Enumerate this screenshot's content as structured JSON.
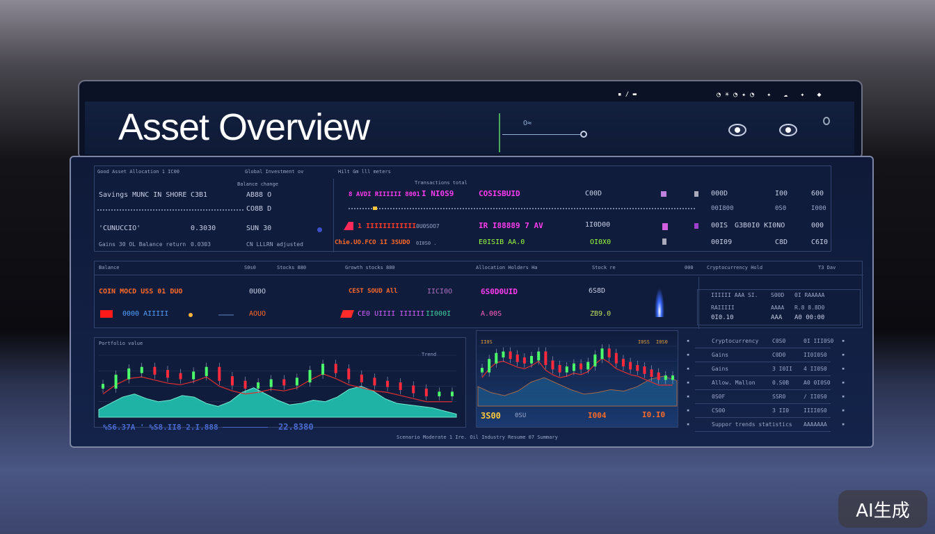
{
  "header": {
    "title": "Asset Overview",
    "toggle_label": "O≈",
    "status_icons": [
      "wifi-icon",
      "signal-icon",
      "battery-icon",
      "settings-icon",
      "user-icon"
    ]
  },
  "top_section": {
    "header_labels": [
      "Good Asset Allocation 1 IC00",
      "Global Investment ov",
      "Hilt Gm lll meters"
    ],
    "sub_label": "Balance change",
    "left_rows": [
      {
        "name": "Savings MUNC IN SHORE",
        "value": "C3B1",
        "amount": "AB88 O"
      },
      {
        "name": "",
        "value": "",
        "amount": "CO8B D"
      },
      {
        "name": "'CUNUCCIO'",
        "value": "0.3030",
        "amount": "SUN 30"
      },
      {
        "name": "Gains 30 OL Balance return",
        "value": "0.0303",
        "amount": "CN LLLRN adjusted"
      }
    ],
    "right_caption": "Transactions total",
    "right_rows": [
      {
        "label": "8 AVDI RIIIIII 8001",
        "tag": "I NI0S9",
        "code": "COSISBUID",
        "val": "C00D",
        "c1": "000D",
        "c2": "I00",
        "c3": "600"
      },
      {
        "label": "",
        "tag": "",
        "code": "",
        "val": "",
        "c1": "00I800",
        "c2": "0S0",
        "c3": "I000"
      },
      {
        "label": "1 IIIIIIIIIIII",
        "tag": "0U0SOO7",
        "code": "IR I88889 7 AV",
        "val": "1I0D00",
        "c1": "00IS",
        "c2": "G3B0I0 KI0NO",
        "c3": "000"
      },
      {
        "label": "Chie.UO.FCO 1I 3SUDO",
        "tag": "0I0S0 .",
        "code": "E0ISIB AA.0",
        "val": "OI0X0",
        "c1": "00I09",
        "c2": "C8D",
        "c3": "C6I0"
      }
    ]
  },
  "mid_section": {
    "header_labels": [
      "Balance",
      "S0s0",
      "Stocks 880",
      "Growth stocks 880",
      "Allocation Holders Ha",
      "Stock re",
      "000",
      "Cryptocurrency Hold",
      "T3 Dav"
    ],
    "rows": [
      {
        "a": "COIN MOCD USS 01 DUO",
        "b": "0U0O",
        "c": "CEST SOUD All",
        "d": "IICI0O",
        "e": "6S0D0UID",
        "f": "6S8D"
      },
      {
        "a": "0000 AIIIII",
        "b": "AOUO",
        "c": "CE0 UIIII IIIIII",
        "d": "II000I",
        "e": "A.00S",
        "f": "ZB9.0"
      }
    ],
    "right_rows": [
      {
        "a": "IIIIII AAA SI.",
        "b": "S00D",
        "c": "0I RAAAAA"
      },
      {
        "a": "RAIIIII",
        "b": "AAAA",
        "c": "R.8 8.8D0"
      },
      {
        "a": "0I0.10",
        "b": "AAA",
        "c": "A0 00:00"
      }
    ]
  },
  "chart_left": {
    "caption": "Portfolio value",
    "annotation": "Trend",
    "footer": [
      "%S6.37A ' %S8.II8 2.I.888",
      "22.8380"
    ]
  },
  "chart_right": {
    "tags": [
      "II0S",
      "I0SS",
      "I0S0"
    ],
    "footer": [
      "3S00",
      "0SU",
      "I004",
      "I0.I0"
    ]
  },
  "right_list": [
    {
      "a": "Cryptocurrency",
      "b": "C0S0",
      "c": "0I III0S0"
    },
    {
      "a": "Gains",
      "b": "C0D0",
      "c": "II0I0S0"
    },
    {
      "a": "Gains",
      "b": "3 I0II",
      "c": "4 II0S0"
    },
    {
      "a": "Allow. Mallon",
      "b": "0.S0B",
      "c": "A0 0I0S0"
    },
    {
      "a": "0S0F",
      "b": "SSR0",
      "c": "/ II0S0"
    },
    {
      "a": "CS00",
      "b": "3 II0",
      "c": "IIII0S0"
    },
    {
      "a": "Suppor trends statistics",
      "b": "",
      "c": "AAAAAAA"
    }
  ],
  "footer": {
    "text": "Scenario Moderate 1 Ire. Oil Industry Resume 07 Summary"
  },
  "watermark": "AI生成",
  "chart_data": {
    "type": "line",
    "series": [
      {
        "values": [
          10,
          18,
          26,
          30,
          24,
          20,
          22,
          28,
          26,
          18,
          14,
          20,
          32,
          38,
          30,
          22,
          16,
          18,
          22,
          20,
          26,
          36,
          40,
          34,
          24,
          18,
          16,
          14,
          12,
          8,
          4
        ]
      },
      {
        "values": [
          40,
          52,
          60,
          62,
          58,
          54,
          52,
          56,
          62,
          50,
          44,
          40,
          42,
          46,
          44,
          48,
          58,
          66,
          60,
          52,
          48,
          44,
          42,
          38,
          34,
          30,
          30,
          30
        ]
      }
    ],
    "ylim": [
      0,
      80
    ],
    "grid": true
  },
  "colors": {
    "accent": "#ff3cf0",
    "up": "#4cff6a",
    "down": "#ff2a3c",
    "area": "#20c4b0"
  }
}
